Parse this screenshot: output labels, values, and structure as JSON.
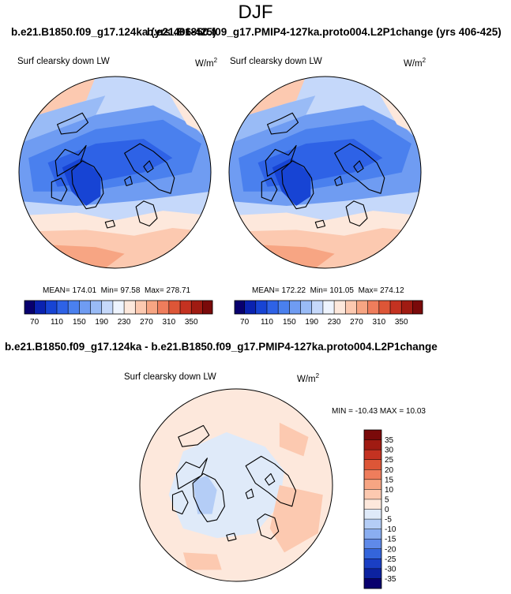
{
  "page_title": "DJF",
  "top_titles": {
    "left": "b.e21.B1850.f09_g17.124ka (yrs 406-425)",
    "right": "b.e21.B1850.f09_g17.PMIP4-127ka.proto004.L2P1change (yrs 406-425)"
  },
  "diff_title": "b.e21.B1850.f09_g17.124ka - b.e21.B1850.f09_g17.PMIP4-127ka.proto004.L2P1change",
  "chart_data": [
    {
      "type": "heatmap",
      "projection": "north-polar-stereographic",
      "title": "Surf clearsky down LW",
      "units": "W/m2",
      "mean_label": "MEAN=",
      "mean": "174.01",
      "min_label": "Min=",
      "min": "97.58",
      "max_label": "Max=",
      "max": "278.71",
      "colorbar": {
        "levels": [
          60,
          70,
          90,
          110,
          130,
          150,
          170,
          190,
          210,
          230,
          250,
          270,
          290,
          310,
          330,
          350,
          360
        ],
        "tick_labels": [
          "70",
          "110",
          "150",
          "190",
          "230",
          "270",
          "310",
          "350"
        ],
        "colors": [
          "#08006e",
          "#0a22b0",
          "#1744d4",
          "#2e62e6",
          "#4a80ee",
          "#6f9cf2",
          "#99bbf6",
          "#c5d8fa",
          "#eef4fe",
          "#fde8dc",
          "#fcc9b0",
          "#f7a583",
          "#ef7d5c",
          "#dd5637",
          "#c43221",
          "#a01b12",
          "#7a0a0a"
        ]
      }
    },
    {
      "type": "heatmap",
      "projection": "north-polar-stereographic",
      "title": "Surf clearsky down LW",
      "units": "W/m2",
      "mean_label": "MEAN=",
      "mean": "172.22",
      "min_label": "Min=",
      "min": "101.05",
      "max_label": "Max=",
      "max": "274.12",
      "colorbar": {
        "levels": [
          60,
          70,
          90,
          110,
          130,
          150,
          170,
          190,
          210,
          230,
          250,
          270,
          290,
          310,
          330,
          350,
          360
        ],
        "tick_labels": [
          "70",
          "110",
          "150",
          "190",
          "230",
          "270",
          "310",
          "350"
        ],
        "colors": [
          "#08006e",
          "#0a22b0",
          "#1744d4",
          "#2e62e6",
          "#4a80ee",
          "#6f9cf2",
          "#99bbf6",
          "#c5d8fa",
          "#eef4fe",
          "#fde8dc",
          "#fcc9b0",
          "#f7a583",
          "#ef7d5c",
          "#dd5637",
          "#c43221",
          "#a01b12",
          "#7a0a0a"
        ]
      }
    },
    {
      "type": "heatmap",
      "projection": "north-polar-stereographic",
      "title": "Surf clearsky down LW",
      "units": "W/m2",
      "min_label": "MIN =",
      "min": "-10.43",
      "max_label": "MAX =",
      "max": "10.03",
      "colorbar": {
        "orientation": "vertical",
        "tick_labels": [
          "35",
          "30",
          "25",
          "20",
          "15",
          "10",
          "5",
          "0",
          "-5",
          "-10",
          "-15",
          "-20",
          "-25",
          "-30",
          "-35"
        ],
        "colors": [
          "#7a0a0a",
          "#a01b12",
          "#c43221",
          "#dd5637",
          "#ef7d5c",
          "#f7a583",
          "#fcc9b0",
          "#fde8dc",
          "#dfeaf9",
          "#b4cdf6",
          "#8aaef1",
          "#5f8ae9",
          "#3465db",
          "#1a3fc4",
          "#0c22a0",
          "#08006e"
        ]
      }
    }
  ]
}
